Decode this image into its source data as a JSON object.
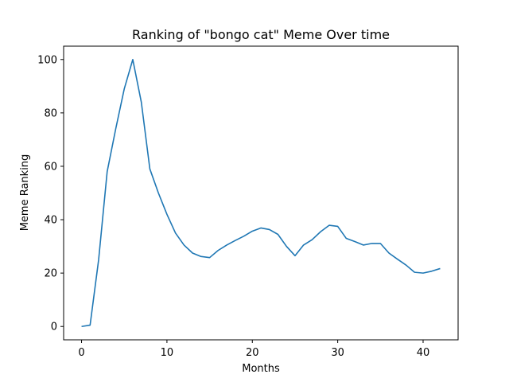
{
  "chart_data": {
    "type": "line",
    "title": "Ranking of \"bongo cat\" Meme Over time",
    "xlabel": "Months",
    "ylabel": "Meme Ranking",
    "xlim": [
      -2.1,
      44.1
    ],
    "ylim": [
      -5,
      105
    ],
    "xticks": [
      0,
      10,
      20,
      30,
      40
    ],
    "yticks": [
      0,
      20,
      40,
      60,
      80,
      100
    ],
    "grid": false,
    "series": [
      {
        "color": "#1f77b4",
        "x": [
          0,
          1,
          2,
          3,
          4,
          5,
          6,
          7,
          8,
          9,
          10,
          11,
          12,
          13,
          14,
          15,
          16,
          17,
          18,
          19,
          20,
          21,
          22,
          23,
          24,
          25,
          26,
          27,
          28,
          29,
          30,
          31,
          32,
          33,
          34,
          35,
          36,
          37,
          38,
          39,
          40,
          41,
          42
        ],
        "values": [
          0,
          0.5,
          25,
          58,
          74,
          89,
          100,
          84,
          59,
          50,
          42,
          35,
          30.5,
          27.5,
          26.2,
          25.8,
          28.5,
          30.5,
          32.2,
          33.8,
          35.7,
          36.9,
          36.3,
          34.5,
          30,
          26.5,
          30.5,
          32.5,
          35.5,
          37.9,
          37.5,
          33,
          31.8,
          30.5,
          31.1,
          31.1,
          27.5,
          25.2,
          23,
          20.3,
          20,
          20.7,
          21.7
        ]
      }
    ]
  }
}
